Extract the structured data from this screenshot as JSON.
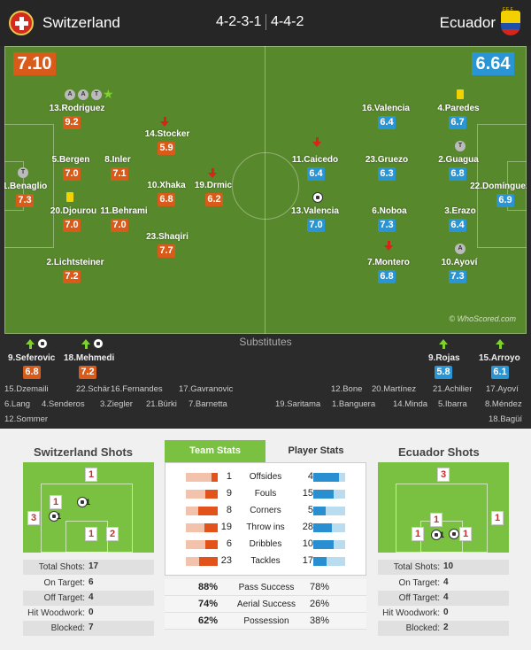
{
  "header": {
    "home_team": "Switzerland",
    "away_team": "Ecuador",
    "home_formation": "4-2-3-1",
    "away_formation": "4-4-2",
    "away_flag_text": "F.E.F."
  },
  "pitch": {
    "home_rating": "7.10",
    "away_rating": "6.64",
    "watermark": "© WhoScored.com",
    "home_players": [
      {
        "name": "1.Benaglio",
        "rating": "7.3"
      },
      {
        "name": "13.Rodriguez",
        "rating": "9.2"
      },
      {
        "name": "5.Bergen",
        "rating": "7.0"
      },
      {
        "name": "20.Djourou",
        "rating": "7.0"
      },
      {
        "name": "2.Lichtsteiner",
        "rating": "7.2"
      },
      {
        "name": "8.Inler",
        "rating": "7.1"
      },
      {
        "name": "11.Behrami",
        "rating": "7.0"
      },
      {
        "name": "14.Stocker",
        "rating": "5.9"
      },
      {
        "name": "10.Xhaka",
        "rating": "6.8"
      },
      {
        "name": "23.Shaqiri",
        "rating": "7.7"
      },
      {
        "name": "19.Drmic",
        "rating": "6.2"
      }
    ],
    "away_players": [
      {
        "name": "22.Domínguez",
        "rating": "6.9"
      },
      {
        "name": "4.Paredes",
        "rating": "6.7"
      },
      {
        "name": "2.Guagua",
        "rating": "6.8"
      },
      {
        "name": "3.Erazo",
        "rating": "6.4"
      },
      {
        "name": "10.Ayoví",
        "rating": "7.3"
      },
      {
        "name": "16.Valencia",
        "rating": "6.4"
      },
      {
        "name": "23.Gruezo",
        "rating": "6.3"
      },
      {
        "name": "6.Noboa",
        "rating": "7.3"
      },
      {
        "name": "7.Montero",
        "rating": "6.8"
      },
      {
        "name": "11.Caicedo",
        "rating": "6.4"
      },
      {
        "name": "13.Valencia",
        "rating": "7.0"
      }
    ],
    "badge_a": "A",
    "badge_t": "T"
  },
  "substitutes": {
    "title": "Substitutes",
    "home_subs": [
      {
        "name": "9.Seferovic",
        "rating": "6.8"
      },
      {
        "name": "18.Mehmedi",
        "rating": "7.2"
      }
    ],
    "away_subs": [
      {
        "name": "9.Rojas",
        "rating": "5.8"
      },
      {
        "name": "15.Arroyo",
        "rating": "6.1"
      }
    ],
    "home_bench": [
      "15.Dzemaili",
      "22.Schär",
      "16.Fernandes",
      "17.Gavranovic",
      "6.Lang",
      "4.Senderos",
      "3.Ziegler",
      "21.Bürki",
      "7.Barnetta",
      "12.Sommer"
    ],
    "away_bench": [
      "12.Bone",
      "20.Martínez",
      "21.Achilier",
      "17.Ayoví",
      "19.Saritama",
      "1.Banguera",
      "14.Minda",
      "5.Ibarra",
      "8.Méndez",
      "18.Bagüí"
    ]
  },
  "home_shots": {
    "title": "Switzerland Shots",
    "zone_counts": [
      "1",
      "1",
      "3",
      "1",
      "2"
    ],
    "ball_counts": [
      "1",
      "1"
    ],
    "summary": [
      {
        "label": "Total Shots:",
        "value": "17"
      },
      {
        "label": "On Target:",
        "value": "6"
      },
      {
        "label": "Off Target:",
        "value": "4"
      },
      {
        "label": "Hit Woodwork:",
        "value": "0"
      },
      {
        "label": "Blocked:",
        "value": "7"
      }
    ]
  },
  "away_shots": {
    "title": "Ecuador Shots",
    "zone_counts": [
      "3",
      "1",
      "1",
      "1",
      "1"
    ],
    "ball_counts": [
      "1",
      "1"
    ],
    "summary": [
      {
        "label": "Total Shots:",
        "value": "10"
      },
      {
        "label": "On Target:",
        "value": "4"
      },
      {
        "label": "Off Target:",
        "value": "4"
      },
      {
        "label": "Hit Woodwork:",
        "value": "0"
      },
      {
        "label": "Blocked:",
        "value": "2"
      }
    ]
  },
  "team_stats": {
    "tabs": [
      "Team Stats",
      "Player Stats"
    ],
    "colors": {
      "home": "#e2531b",
      "away": "#2a8fd0",
      "tab_active": "#7ac142"
    },
    "rows": [
      {
        "label": "Offsides",
        "home": 1,
        "away": 4
      },
      {
        "label": "Fouls",
        "home": 9,
        "away": 15
      },
      {
        "label": "Corners",
        "home": 8,
        "away": 5
      },
      {
        "label": "Throw ins",
        "home": 19,
        "away": 28
      },
      {
        "label": "Dribbles",
        "home": 6,
        "away": 10
      },
      {
        "label": "Tackles",
        "home": 23,
        "away": 17
      }
    ],
    "percent_rows": [
      {
        "label": "Pass Success",
        "home": "88%",
        "away": "78%"
      },
      {
        "label": "Aerial Success",
        "home": "74%",
        "away": "26%"
      },
      {
        "label": "Possession",
        "home": "62%",
        "away": "38%"
      }
    ]
  }
}
